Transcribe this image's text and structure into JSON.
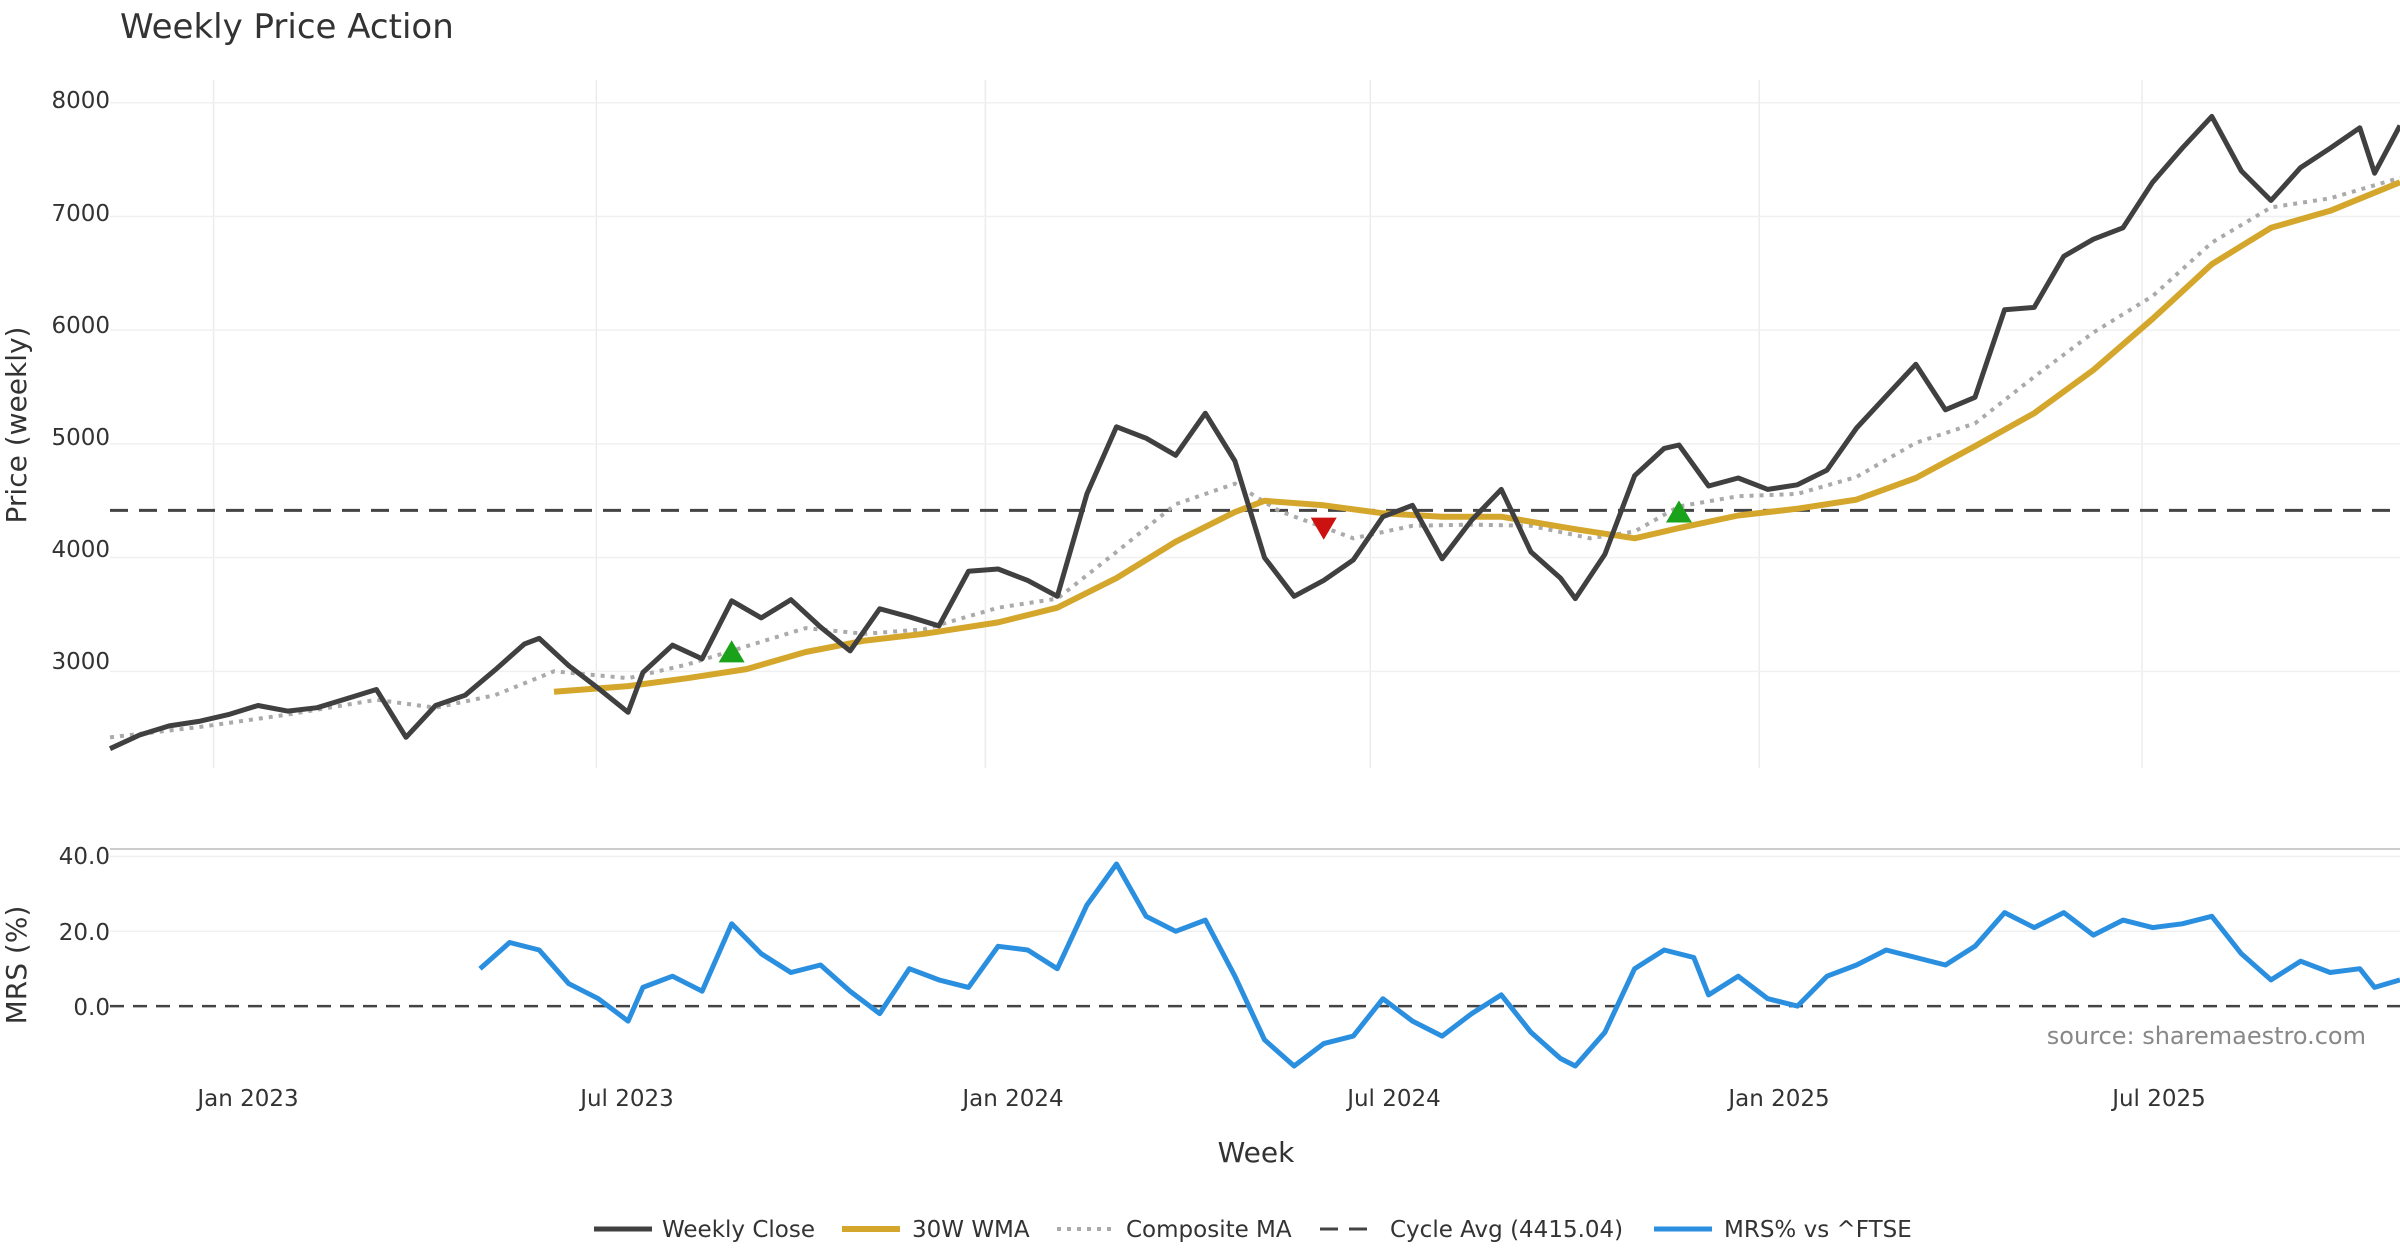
{
  "chart_data": {
    "title": "Weekly Price Action",
    "source": "source: sharemaestro.com",
    "type": "line",
    "xlabel": "Week",
    "x_ticks": [
      "Jan 2023",
      "Jul 2023",
      "Jan 2024",
      "Jul 2024",
      "Jan 2025",
      "Jul 2025"
    ],
    "x_range": [
      "2022-11-13",
      "2025-10-31"
    ],
    "price_panel": {
      "ylabel": "Price (weekly)",
      "ylim": [
        2150,
        8200
      ],
      "y_ticks": [
        "3000",
        "4000",
        "5000",
        "6000",
        "7000",
        "8000"
      ],
      "cycle_avg": 4415.04
    },
    "mrs_panel": {
      "ylabel": "MRS (%)",
      "ylim": [
        -16,
        42
      ],
      "y_ticks": [
        "0.0",
        "20.0",
        "40.0"
      ]
    },
    "legend": [
      "Weekly Close",
      "30W WMA",
      "Composite MA",
      "Cycle Avg (4415.04)",
      "MRS% vs ^FTSE"
    ],
    "colors": {
      "close": "#404040",
      "wma": "#d4a72c",
      "composite": "#aaaaaa",
      "cycle": "#444444",
      "mrs": "#2b8fe0",
      "buy": "#1aa31a",
      "sell": "#cc1111"
    },
    "series": [
      {
        "name": "Weekly Close",
        "points": [
          [
            "2022-11-13",
            2320
          ],
          [
            "2022-11-27",
            2440
          ],
          [
            "2022-12-11",
            2520
          ],
          [
            "2022-12-25",
            2560
          ],
          [
            "2023-01-08",
            2620
          ],
          [
            "2023-01-22",
            2700
          ],
          [
            "2023-02-05",
            2650
          ],
          [
            "2023-02-19",
            2680
          ],
          [
            "2023-03-05",
            2760
          ],
          [
            "2023-03-19",
            2840
          ],
          [
            "2023-04-02",
            2420
          ],
          [
            "2023-04-16",
            2700
          ],
          [
            "2023-04-30",
            2790
          ],
          [
            "2023-05-14",
            3010
          ],
          [
            "2023-05-28",
            3240
          ],
          [
            "2023-06-04",
            3290
          ],
          [
            "2023-06-18",
            3050
          ],
          [
            "2023-07-02",
            2850
          ],
          [
            "2023-07-16",
            2640
          ],
          [
            "2023-07-23",
            2990
          ],
          [
            "2023-08-06",
            3230
          ],
          [
            "2023-08-20",
            3110
          ],
          [
            "2023-09-03",
            3620
          ],
          [
            "2023-09-17",
            3470
          ],
          [
            "2023-10-01",
            3630
          ],
          [
            "2023-10-15",
            3390
          ],
          [
            "2023-10-29",
            3180
          ],
          [
            "2023-11-12",
            3550
          ],
          [
            "2023-11-26",
            3480
          ],
          [
            "2023-12-10",
            3400
          ],
          [
            "2023-12-24",
            3880
          ],
          [
            "2024-01-07",
            3900
          ],
          [
            "2024-01-21",
            3800
          ],
          [
            "2024-02-04",
            3660
          ],
          [
            "2024-02-18",
            4560
          ],
          [
            "2024-03-03",
            5150
          ],
          [
            "2024-03-17",
            5050
          ],
          [
            "2024-03-31",
            4900
          ],
          [
            "2024-04-14",
            5270
          ],
          [
            "2024-04-28",
            4850
          ],
          [
            "2024-05-12",
            4000
          ],
          [
            "2024-05-26",
            3660
          ],
          [
            "2024-06-09",
            3800
          ],
          [
            "2024-06-23",
            3980
          ],
          [
            "2024-07-07",
            4360
          ],
          [
            "2024-07-21",
            4460
          ],
          [
            "2024-08-04",
            3990
          ],
          [
            "2024-08-18",
            4330
          ],
          [
            "2024-09-01",
            4600
          ],
          [
            "2024-09-15",
            4050
          ],
          [
            "2024-09-29",
            3820
          ],
          [
            "2024-10-06",
            3640
          ],
          [
            "2024-10-20",
            4030
          ],
          [
            "2024-11-03",
            4720
          ],
          [
            "2024-11-17",
            4960
          ],
          [
            "2024-11-24",
            4990
          ],
          [
            "2024-12-08",
            4630
          ],
          [
            "2024-12-22",
            4700
          ],
          [
            "2025-01-05",
            4600
          ],
          [
            "2025-01-19",
            4640
          ],
          [
            "2025-02-02",
            4770
          ],
          [
            "2025-02-16",
            5140
          ],
          [
            "2025-03-02",
            5420
          ],
          [
            "2025-03-16",
            5700
          ],
          [
            "2025-03-30",
            5300
          ],
          [
            "2025-04-13",
            5410
          ],
          [
            "2025-04-27",
            6180
          ],
          [
            "2025-05-11",
            6200
          ],
          [
            "2025-05-25",
            6650
          ],
          [
            "2025-06-08",
            6800
          ],
          [
            "2025-06-22",
            6900
          ],
          [
            "2025-07-06",
            7300
          ],
          [
            "2025-07-20",
            7600
          ],
          [
            "2025-08-03",
            7880
          ],
          [
            "2025-08-17",
            7400
          ],
          [
            "2025-08-31",
            7140
          ],
          [
            "2025-09-14",
            7430
          ],
          [
            "2025-09-28",
            7600
          ],
          [
            "2025-10-12",
            7780
          ],
          [
            "2025-10-19",
            7380
          ],
          [
            "2025-10-31",
            7800
          ]
        ]
      },
      {
        "name": "30W WMA",
        "points": [
          [
            "2023-06-11",
            2820
          ],
          [
            "2023-07-16",
            2870
          ],
          [
            "2023-08-13",
            2940
          ],
          [
            "2023-09-10",
            3020
          ],
          [
            "2023-10-08",
            3170
          ],
          [
            "2023-11-05",
            3270
          ],
          [
            "2023-12-03",
            3330
          ],
          [
            "2024-01-07",
            3430
          ],
          [
            "2024-02-04",
            3560
          ],
          [
            "2024-03-03",
            3820
          ],
          [
            "2024-03-31",
            4140
          ],
          [
            "2024-04-28",
            4400
          ],
          [
            "2024-05-12",
            4500
          ],
          [
            "2024-06-09",
            4460
          ],
          [
            "2024-07-07",
            4390
          ],
          [
            "2024-08-04",
            4360
          ],
          [
            "2024-09-01",
            4360
          ],
          [
            "2024-10-06",
            4250
          ],
          [
            "2024-11-03",
            4170
          ],
          [
            "2024-11-24",
            4260
          ],
          [
            "2024-12-22",
            4370
          ],
          [
            "2025-01-19",
            4430
          ],
          [
            "2025-02-16",
            4510
          ],
          [
            "2025-03-16",
            4700
          ],
          [
            "2025-04-13",
            4980
          ],
          [
            "2025-05-11",
            5270
          ],
          [
            "2025-06-08",
            5650
          ],
          [
            "2025-07-06",
            6100
          ],
          [
            "2025-08-03",
            6580
          ],
          [
            "2025-08-31",
            6900
          ],
          [
            "2025-09-28",
            7050
          ],
          [
            "2025-10-31",
            7300
          ]
        ]
      },
      {
        "name": "Composite MA",
        "points": [
          [
            "2022-11-13",
            2420
          ],
          [
            "2022-12-25",
            2510
          ],
          [
            "2023-02-05",
            2620
          ],
          [
            "2023-03-19",
            2750
          ],
          [
            "2023-04-16",
            2680
          ],
          [
            "2023-05-14",
            2790
          ],
          [
            "2023-06-11",
            3000
          ],
          [
            "2023-07-16",
            2940
          ],
          [
            "2023-08-13",
            3060
          ],
          [
            "2023-09-10",
            3220
          ],
          [
            "2023-10-08",
            3380
          ],
          [
            "2023-11-05",
            3330
          ],
          [
            "2023-12-03",
            3370
          ],
          [
            "2024-01-07",
            3560
          ],
          [
            "2024-02-04",
            3640
          ],
          [
            "2024-03-03",
            4050
          ],
          [
            "2024-03-31",
            4470
          ],
          [
            "2024-04-28",
            4650
          ],
          [
            "2024-05-19",
            4410
          ],
          [
            "2024-06-23",
            4170
          ],
          [
            "2024-07-21",
            4280
          ],
          [
            "2024-08-18",
            4290
          ],
          [
            "2024-09-15",
            4280
          ],
          [
            "2024-10-13",
            4170
          ],
          [
            "2024-11-03",
            4230
          ],
          [
            "2024-11-24",
            4450
          ],
          [
            "2024-12-22",
            4540
          ],
          [
            "2025-01-19",
            4560
          ],
          [
            "2025-02-16",
            4710
          ],
          [
            "2025-03-16",
            5010
          ],
          [
            "2025-04-13",
            5180
          ],
          [
            "2025-05-11",
            5590
          ],
          [
            "2025-06-08",
            5980
          ],
          [
            "2025-07-06",
            6300
          ],
          [
            "2025-08-03",
            6770
          ],
          [
            "2025-08-31",
            7080
          ],
          [
            "2025-09-28",
            7160
          ],
          [
            "2025-10-31",
            7340
          ]
        ]
      },
      {
        "name": "MRS% vs ^FTSE",
        "points": [
          [
            "2023-05-07",
            10
          ],
          [
            "2023-05-21",
            17
          ],
          [
            "2023-06-04",
            15
          ],
          [
            "2023-06-18",
            6
          ],
          [
            "2023-07-02",
            2
          ],
          [
            "2023-07-16",
            -4
          ],
          [
            "2023-07-23",
            5
          ],
          [
            "2023-08-06",
            8
          ],
          [
            "2023-08-20",
            4
          ],
          [
            "2023-09-03",
            22
          ],
          [
            "2023-09-17",
            14
          ],
          [
            "2023-10-01",
            9
          ],
          [
            "2023-10-15",
            11
          ],
          [
            "2023-10-29",
            4
          ],
          [
            "2023-11-12",
            -2
          ],
          [
            "2023-11-26",
            10
          ],
          [
            "2023-12-10",
            7
          ],
          [
            "2023-12-24",
            5
          ],
          [
            "2024-01-07",
            16
          ],
          [
            "2024-01-21",
            15
          ],
          [
            "2024-02-04",
            10
          ],
          [
            "2024-02-18",
            27
          ],
          [
            "2024-03-03",
            38
          ],
          [
            "2024-03-17",
            24
          ],
          [
            "2024-03-31",
            20
          ],
          [
            "2024-04-14",
            23
          ],
          [
            "2024-04-28",
            8
          ],
          [
            "2024-05-12",
            -9
          ],
          [
            "2024-05-26",
            -16
          ],
          [
            "2024-06-09",
            -10
          ],
          [
            "2024-06-23",
            -8
          ],
          [
            "2024-07-07",
            2
          ],
          [
            "2024-07-21",
            -4
          ],
          [
            "2024-08-04",
            -8
          ],
          [
            "2024-08-18",
            -2
          ],
          [
            "2024-09-01",
            3
          ],
          [
            "2024-09-15",
            -7
          ],
          [
            "2024-09-29",
            -14
          ],
          [
            "2024-10-06",
            -16
          ],
          [
            "2024-10-20",
            -7
          ],
          [
            "2024-11-03",
            10
          ],
          [
            "2024-11-17",
            15
          ],
          [
            "2024-12-01",
            13
          ],
          [
            "2024-12-08",
            3
          ],
          [
            "2024-12-22",
            8
          ],
          [
            "2025-01-05",
            2
          ],
          [
            "2025-01-19",
            0
          ],
          [
            "2025-02-02",
            8
          ],
          [
            "2025-02-16",
            11
          ],
          [
            "2025-03-02",
            15
          ],
          [
            "2025-03-16",
            13
          ],
          [
            "2025-03-30",
            11
          ],
          [
            "2025-04-13",
            16
          ],
          [
            "2025-04-27",
            25
          ],
          [
            "2025-05-11",
            21
          ],
          [
            "2025-05-25",
            25
          ],
          [
            "2025-06-08",
            19
          ],
          [
            "2025-06-22",
            23
          ],
          [
            "2025-07-06",
            21
          ],
          [
            "2025-07-20",
            22
          ],
          [
            "2025-08-03",
            24
          ],
          [
            "2025-08-17",
            14
          ],
          [
            "2025-08-31",
            7
          ],
          [
            "2025-09-14",
            12
          ],
          [
            "2025-09-28",
            9
          ],
          [
            "2025-10-12",
            10
          ],
          [
            "2025-10-19",
            5
          ],
          [
            "2025-10-31",
            7
          ]
        ]
      }
    ],
    "signals": [
      {
        "type": "buy",
        "date": "2023-09-03",
        "value": 3170
      },
      {
        "type": "sell",
        "date": "2024-06-09",
        "value": 4260
      },
      {
        "type": "buy",
        "date": "2024-11-24",
        "value": 4400
      }
    ]
  }
}
